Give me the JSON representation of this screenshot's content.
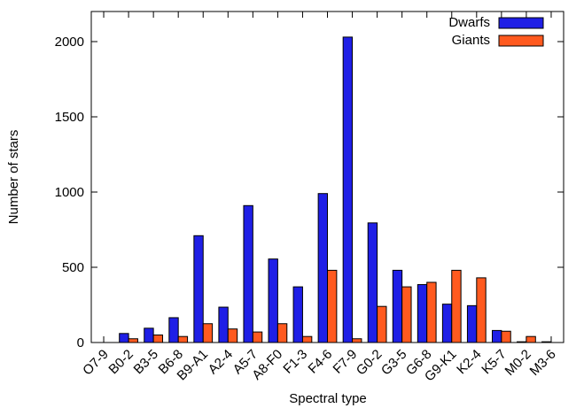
{
  "chart_data": {
    "type": "bar",
    "xlabel": "Spectral type",
    "ylabel": "Number of stars",
    "ylim": [
      0,
      2200
    ],
    "yticks": [
      0,
      500,
      1000,
      1500,
      2000
    ],
    "categories": [
      "O7-9",
      "B0-2",
      "B3-5",
      "B6-8",
      "B9-A1",
      "A2-4",
      "A5-7",
      "A8-F0",
      "F1-3",
      "F4-6",
      "F7-9",
      "G0-2",
      "G3-5",
      "G6-8",
      "G9-K1",
      "K2-4",
      "K5-7",
      "M0-2",
      "M3-6"
    ],
    "series": [
      {
        "name": "Dwarfs",
        "color": "#1f1fe6",
        "values": [
          0,
          60,
          95,
          165,
          710,
          235,
          910,
          555,
          370,
          990,
          2030,
          795,
          480,
          385,
          255,
          245,
          80,
          5,
          5
        ]
      },
      {
        "name": "Giants",
        "color": "#ff5a1f",
        "values": [
          0,
          25,
          50,
          40,
          125,
          90,
          70,
          125,
          40,
          480,
          25,
          240,
          370,
          400,
          480,
          430,
          75,
          40,
          0
        ]
      }
    ],
    "legend": "top-right",
    "grid": false
  }
}
